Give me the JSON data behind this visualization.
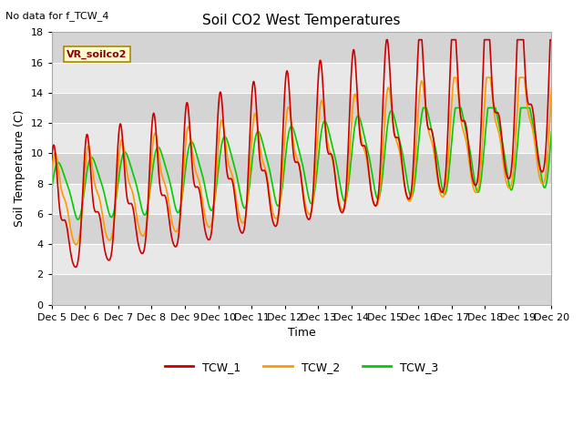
{
  "title": "Soil CO2 West Temperatures",
  "no_data_label": "No data for f_TCW_4",
  "vr_label": "VR_soilco2",
  "xlabel": "Time",
  "ylabel": "Soil Temperature (C)",
  "ylim": [
    0,
    18
  ],
  "x_tick_labels": [
    "Dec 5",
    "Dec 6",
    "Dec 7",
    "Dec 8",
    "Dec 9",
    "Dec 10",
    "Dec 11",
    "Dec 12",
    "Dec 13",
    "Dec 14",
    "Dec 15",
    "Dec 16",
    "Dec 17",
    "Dec 18",
    "Dec 19",
    "Dec 20"
  ],
  "color_TCW1": "#cc0000",
  "color_TCW2": "#ff9900",
  "color_TCW3": "#00cc00",
  "line_width": 1.2,
  "legend_entries": [
    "TCW_1",
    "TCW_2",
    "TCW_3"
  ],
  "grid_color": "#ffffff",
  "bg_color": "#e8e8e8"
}
